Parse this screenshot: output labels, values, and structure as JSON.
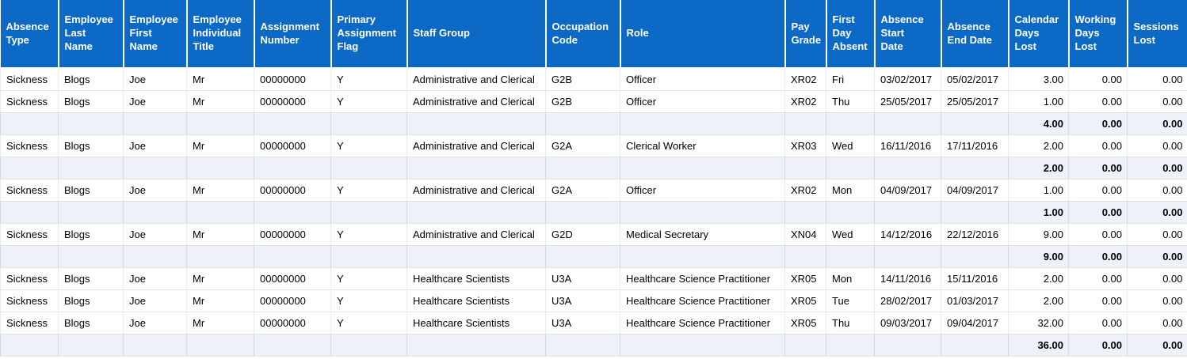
{
  "colors": {
    "header_bg": "#0c69c6",
    "header_text": "#ffffff",
    "subtotal_row_bg": "#eef1f9",
    "row_border": "#e2e2e2",
    "subtotal_border": "#d3d9e6",
    "body_text": "#000000"
  },
  "table": {
    "columns": [
      {
        "label": "Absence\nType",
        "align": "left"
      },
      {
        "label": "Employee\nLast\nName",
        "align": "left"
      },
      {
        "label": "Employee\nFirst\nName",
        "align": "left"
      },
      {
        "label": "Employee\nIndividual\nTitle",
        "align": "left"
      },
      {
        "label": "Assignment\nNumber",
        "align": "left"
      },
      {
        "label": "Primary\nAssignment\nFlag",
        "align": "left"
      },
      {
        "label": "Staff Group",
        "align": "left"
      },
      {
        "label": "Occupation\nCode",
        "align": "left"
      },
      {
        "label": "Role",
        "align": "left"
      },
      {
        "label": "Pay\nGrade",
        "align": "left"
      },
      {
        "label": "First\nDay\nAbsent",
        "align": "left"
      },
      {
        "label": "Absence\nStart\nDate",
        "align": "left"
      },
      {
        "label": "Absence\nEnd Date",
        "align": "left"
      },
      {
        "label": "Calendar\nDays\nLost",
        "align": "right"
      },
      {
        "label": "Working\nDays\nLost",
        "align": "right"
      },
      {
        "label": "Sessions\nLost",
        "align": "right"
      }
    ],
    "rows": [
      {
        "type": "data",
        "cells": [
          "Sickness",
          "Blogs",
          "Joe",
          "Mr",
          "00000000",
          "Y",
          "Administrative and Clerical",
          "G2B",
          "Officer",
          "XR02",
          "Fri",
          "03/02/2017",
          "05/02/2017",
          "3.00",
          "0.00",
          "0.00"
        ]
      },
      {
        "type": "data",
        "cells": [
          "Sickness",
          "Blogs",
          "Joe",
          "Mr",
          "00000000",
          "Y",
          "Administrative and Clerical",
          "G2B",
          "Officer",
          "XR02",
          "Thu",
          "25/05/2017",
          "25/05/2017",
          "1.00",
          "0.00",
          "0.00"
        ]
      },
      {
        "type": "subtotal",
        "cells": [
          "",
          "",
          "",
          "",
          "",
          "",
          "",
          "",
          "",
          "",
          "",
          "",
          "",
          "4.00",
          "0.00",
          "0.00"
        ]
      },
      {
        "type": "data",
        "cells": [
          "Sickness",
          "Blogs",
          "Joe",
          "Mr",
          "00000000",
          "Y",
          "Administrative and Clerical",
          "G2A",
          "Clerical Worker",
          "XR03",
          "Wed",
          "16/11/2016",
          "17/11/2016",
          "2.00",
          "0.00",
          "0.00"
        ]
      },
      {
        "type": "subtotal",
        "cells": [
          "",
          "",
          "",
          "",
          "",
          "",
          "",
          "",
          "",
          "",
          "",
          "",
          "",
          "2.00",
          "0.00",
          "0.00"
        ]
      },
      {
        "type": "data",
        "cells": [
          "Sickness",
          "Blogs",
          "Joe",
          "Mr",
          "00000000",
          "Y",
          "Administrative and Clerical",
          "G2A",
          "Officer",
          "XR02",
          "Mon",
          "04/09/2017",
          "04/09/2017",
          "1.00",
          "0.00",
          "0.00"
        ]
      },
      {
        "type": "subtotal",
        "cells": [
          "",
          "",
          "",
          "",
          "",
          "",
          "",
          "",
          "",
          "",
          "",
          "",
          "",
          "1.00",
          "0.00",
          "0.00"
        ]
      },
      {
        "type": "data",
        "cells": [
          "Sickness",
          "Blogs",
          "Joe",
          "Mr",
          "00000000",
          "Y",
          "Administrative and Clerical",
          "G2D",
          "Medical Secretary",
          "XN04",
          "Wed",
          "14/12/2016",
          "22/12/2016",
          "9.00",
          "0.00",
          "0.00"
        ]
      },
      {
        "type": "subtotal",
        "cells": [
          "",
          "",
          "",
          "",
          "",
          "",
          "",
          "",
          "",
          "",
          "",
          "",
          "",
          "9.00",
          "0.00",
          "0.00"
        ]
      },
      {
        "type": "data",
        "cells": [
          "Sickness",
          "Blogs",
          "Joe",
          "Mr",
          "00000000",
          "Y",
          "Healthcare Scientists",
          "U3A",
          "Healthcare Science Practitioner",
          "XR05",
          "Mon",
          "14/11/2016",
          "15/11/2016",
          "2.00",
          "0.00",
          "0.00"
        ]
      },
      {
        "type": "data",
        "cells": [
          "Sickness",
          "Blogs",
          "Joe",
          "Mr",
          "00000000",
          "Y",
          "Healthcare Scientists",
          "U3A",
          "Healthcare Science Practitioner",
          "XR05",
          "Tue",
          "28/02/2017",
          "01/03/2017",
          "2.00",
          "0.00",
          "0.00"
        ]
      },
      {
        "type": "data",
        "cells": [
          "Sickness",
          "Blogs",
          "Joe",
          "Mr",
          "00000000",
          "Y",
          "Healthcare Scientists",
          "U3A",
          "Healthcare Science Practitioner",
          "XR05",
          "Thu",
          "09/03/2017",
          "09/04/2017",
          "32.00",
          "0.00",
          "0.00"
        ]
      },
      {
        "type": "subtotal",
        "cells": [
          "",
          "",
          "",
          "",
          "",
          "",
          "",
          "",
          "",
          "",
          "",
          "",
          "",
          "36.00",
          "0.00",
          "0.00"
        ]
      }
    ]
  }
}
